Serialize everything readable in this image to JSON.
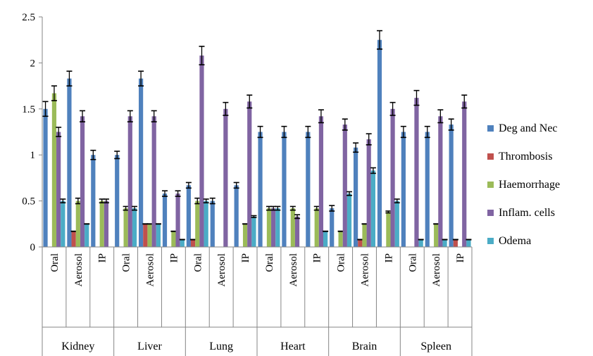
{
  "chart_data": {
    "type": "bar",
    "title": "",
    "xlabel": "",
    "ylabel": "",
    "ylim": [
      0,
      2.5
    ],
    "yticks": [
      "0",
      "0.5",
      "1",
      "1.5",
      "2",
      "2.5"
    ],
    "grid": false,
    "legend_position": "right",
    "error_bars": true,
    "groups": [
      "Kidney",
      "Liver",
      "Lung",
      "Heart",
      "Brain",
      "Spleen"
    ],
    "categories": [
      "Oral",
      "Aerosol",
      "IP",
      "Oral",
      "Aerosol",
      "IP",
      "Oral",
      "Aerosol",
      "IP",
      "Oral",
      "Aerosol",
      "IP",
      "Oral",
      "Aerosol",
      "IP",
      "Oral",
      "Aerosol",
      "IP"
    ],
    "series": [
      {
        "name": "Deg and Nec",
        "color": "#4f81bd",
        "values": [
          1.5,
          1.83,
          1.0,
          1.0,
          1.83,
          0.58,
          0.67,
          0.5,
          0.67,
          1.25,
          1.25,
          1.25,
          0.42,
          1.08,
          2.25,
          1.25,
          1.25,
          1.33
        ],
        "errors": [
          0.08,
          0.08,
          0.05,
          0.04,
          0.08,
          0.03,
          0.03,
          0.03,
          0.03,
          0.06,
          0.06,
          0.06,
          0.03,
          0.05,
          0.1,
          0.06,
          0.06,
          0.06
        ]
      },
      {
        "name": "Thrombosis",
        "color": "#c0504d",
        "values": [
          0,
          0.17,
          0,
          0,
          0.25,
          0,
          0.08,
          0,
          0,
          0,
          0,
          0,
          0,
          0.08,
          0,
          0,
          0,
          0.08
        ],
        "errors": [
          0,
          0,
          0,
          0,
          0,
          0,
          0,
          0,
          0,
          0,
          0,
          0,
          0,
          0,
          0,
          0,
          0,
          0
        ]
      },
      {
        "name": "Haemorrhage",
        "color": "#9bbb59",
        "values": [
          1.67,
          0.5,
          0.5,
          0.42,
          0.25,
          0.17,
          0.5,
          0,
          0.25,
          0.42,
          0.42,
          0.42,
          0.17,
          0.25,
          0.38,
          0,
          0.25,
          0
        ],
        "errors": [
          0.08,
          0.03,
          0.02,
          0.02,
          0,
          0,
          0.03,
          0,
          0,
          0.02,
          0.02,
          0.02,
          0,
          0,
          0.01,
          0,
          0,
          0
        ]
      },
      {
        "name": "Inflam. cells",
        "color": "#8064a2",
        "values": [
          1.25,
          1.42,
          0.5,
          1.42,
          1.42,
          0.58,
          2.08,
          1.5,
          1.58,
          0.42,
          0.33,
          1.42,
          1.33,
          1.17,
          1.5,
          1.62,
          1.42,
          1.58
        ],
        "errors": [
          0.05,
          0.06,
          0.02,
          0.06,
          0.06,
          0.03,
          0.1,
          0.07,
          0.07,
          0.02,
          0.02,
          0.07,
          0.06,
          0.06,
          0.07,
          0.08,
          0.07,
          0.07
        ]
      },
      {
        "name": "Odema",
        "color": "#4bacc6",
        "values": [
          0.5,
          0.25,
          0,
          0.42,
          0.25,
          0.08,
          0.5,
          0,
          0.33,
          0.42,
          0,
          0.17,
          0.58,
          0.83,
          0.5,
          0.08,
          0.08,
          0.08
        ],
        "errors": [
          0.02,
          0,
          0,
          0.02,
          0,
          0,
          0.02,
          0,
          0.01,
          0.02,
          0,
          0,
          0.02,
          0.03,
          0.02,
          0,
          0,
          0
        ]
      }
    ]
  }
}
